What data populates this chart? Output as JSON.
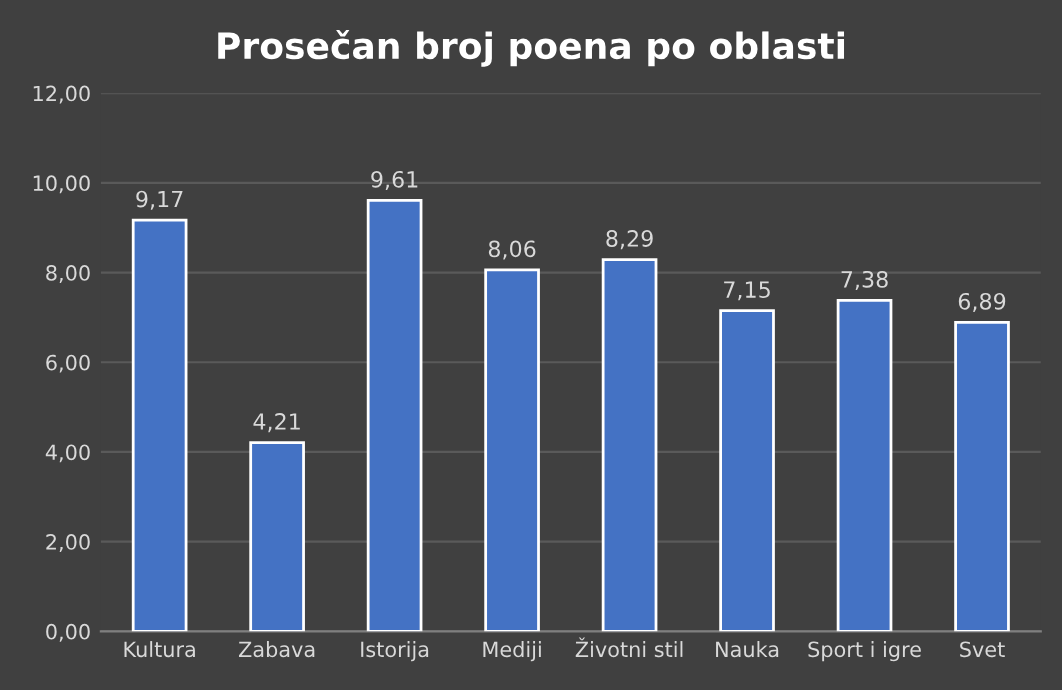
{
  "chart_data": {
    "type": "bar",
    "title": "Prosečan broj poena po oblasti",
    "categories": [
      "Kultura",
      "Zabava",
      "Istorija",
      "Mediji",
      "Životni stil",
      "Nauka",
      "Sport i igre",
      "Svet"
    ],
    "values": [
      9.17,
      4.21,
      9.61,
      8.06,
      8.29,
      7.15,
      7.38,
      6.89
    ],
    "value_labels": [
      "9,17",
      "4,21",
      "9,61",
      "8,06",
      "8,29",
      "7,15",
      "7,38",
      "6,89"
    ],
    "color": "#4472c4",
    "ylim": [
      0,
      12
    ],
    "yticks": [
      {
        "value": 0,
        "label": "0,00"
      },
      {
        "value": 2,
        "label": "2,00"
      },
      {
        "value": 4,
        "label": "4,00"
      },
      {
        "value": 6,
        "label": "6,00"
      },
      {
        "value": 8,
        "label": "8,00"
      },
      {
        "value": 10,
        "label": "10,00"
      },
      {
        "value": 12,
        "label": "12,00"
      }
    ],
    "grid": "y"
  }
}
